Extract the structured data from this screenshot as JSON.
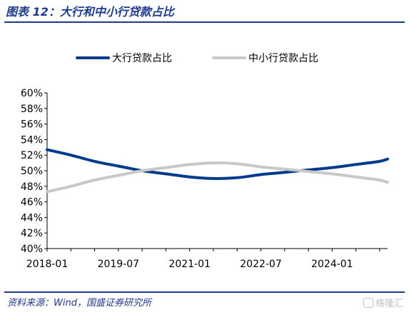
{
  "figure": {
    "title": "图表 12：大行和中小行贷款占比",
    "source": "资料来源：Wind，国盛证券研究所",
    "watermark": "格隆汇"
  },
  "colors": {
    "accent": "#1f3a8a",
    "series_large": "#003a8c",
    "series_small": "#c8c8c8",
    "axis": "#000000"
  },
  "chart_data": {
    "type": "line",
    "title": "",
    "xlabel": "",
    "ylabel": "",
    "x_ticks": [
      "2018-01",
      "2019-07",
      "2021-01",
      "2022-07",
      "2024-01"
    ],
    "y_ticks": [
      "40%",
      "42%",
      "44%",
      "46%",
      "48%",
      "50%",
      "52%",
      "54%",
      "56%",
      "58%",
      "60%"
    ],
    "ylim": [
      40,
      60
    ],
    "xlim": [
      "2018-01",
      "2025-03"
    ],
    "grid": false,
    "legend": "top",
    "x": [
      "2018-01",
      "2018-07",
      "2019-01",
      "2019-07",
      "2020-01",
      "2020-07",
      "2021-01",
      "2021-07",
      "2022-01",
      "2022-07",
      "2023-01",
      "2023-07",
      "2024-01",
      "2024-07",
      "2025-01",
      "2025-03"
    ],
    "series": [
      {
        "name": "大行贷款占比",
        "color": "#003a8c",
        "values": [
          52.7,
          52.0,
          51.2,
          50.6,
          50.0,
          49.6,
          49.2,
          49.0,
          49.1,
          49.5,
          49.8,
          50.1,
          50.4,
          50.8,
          51.2,
          51.5
        ]
      },
      {
        "name": "中小行贷款占比",
        "color": "#c8c8c8",
        "values": [
          47.3,
          48.0,
          48.8,
          49.4,
          50.0,
          50.4,
          50.8,
          51.0,
          50.9,
          50.5,
          50.2,
          49.9,
          49.6,
          49.2,
          48.8,
          48.5
        ]
      }
    ]
  }
}
